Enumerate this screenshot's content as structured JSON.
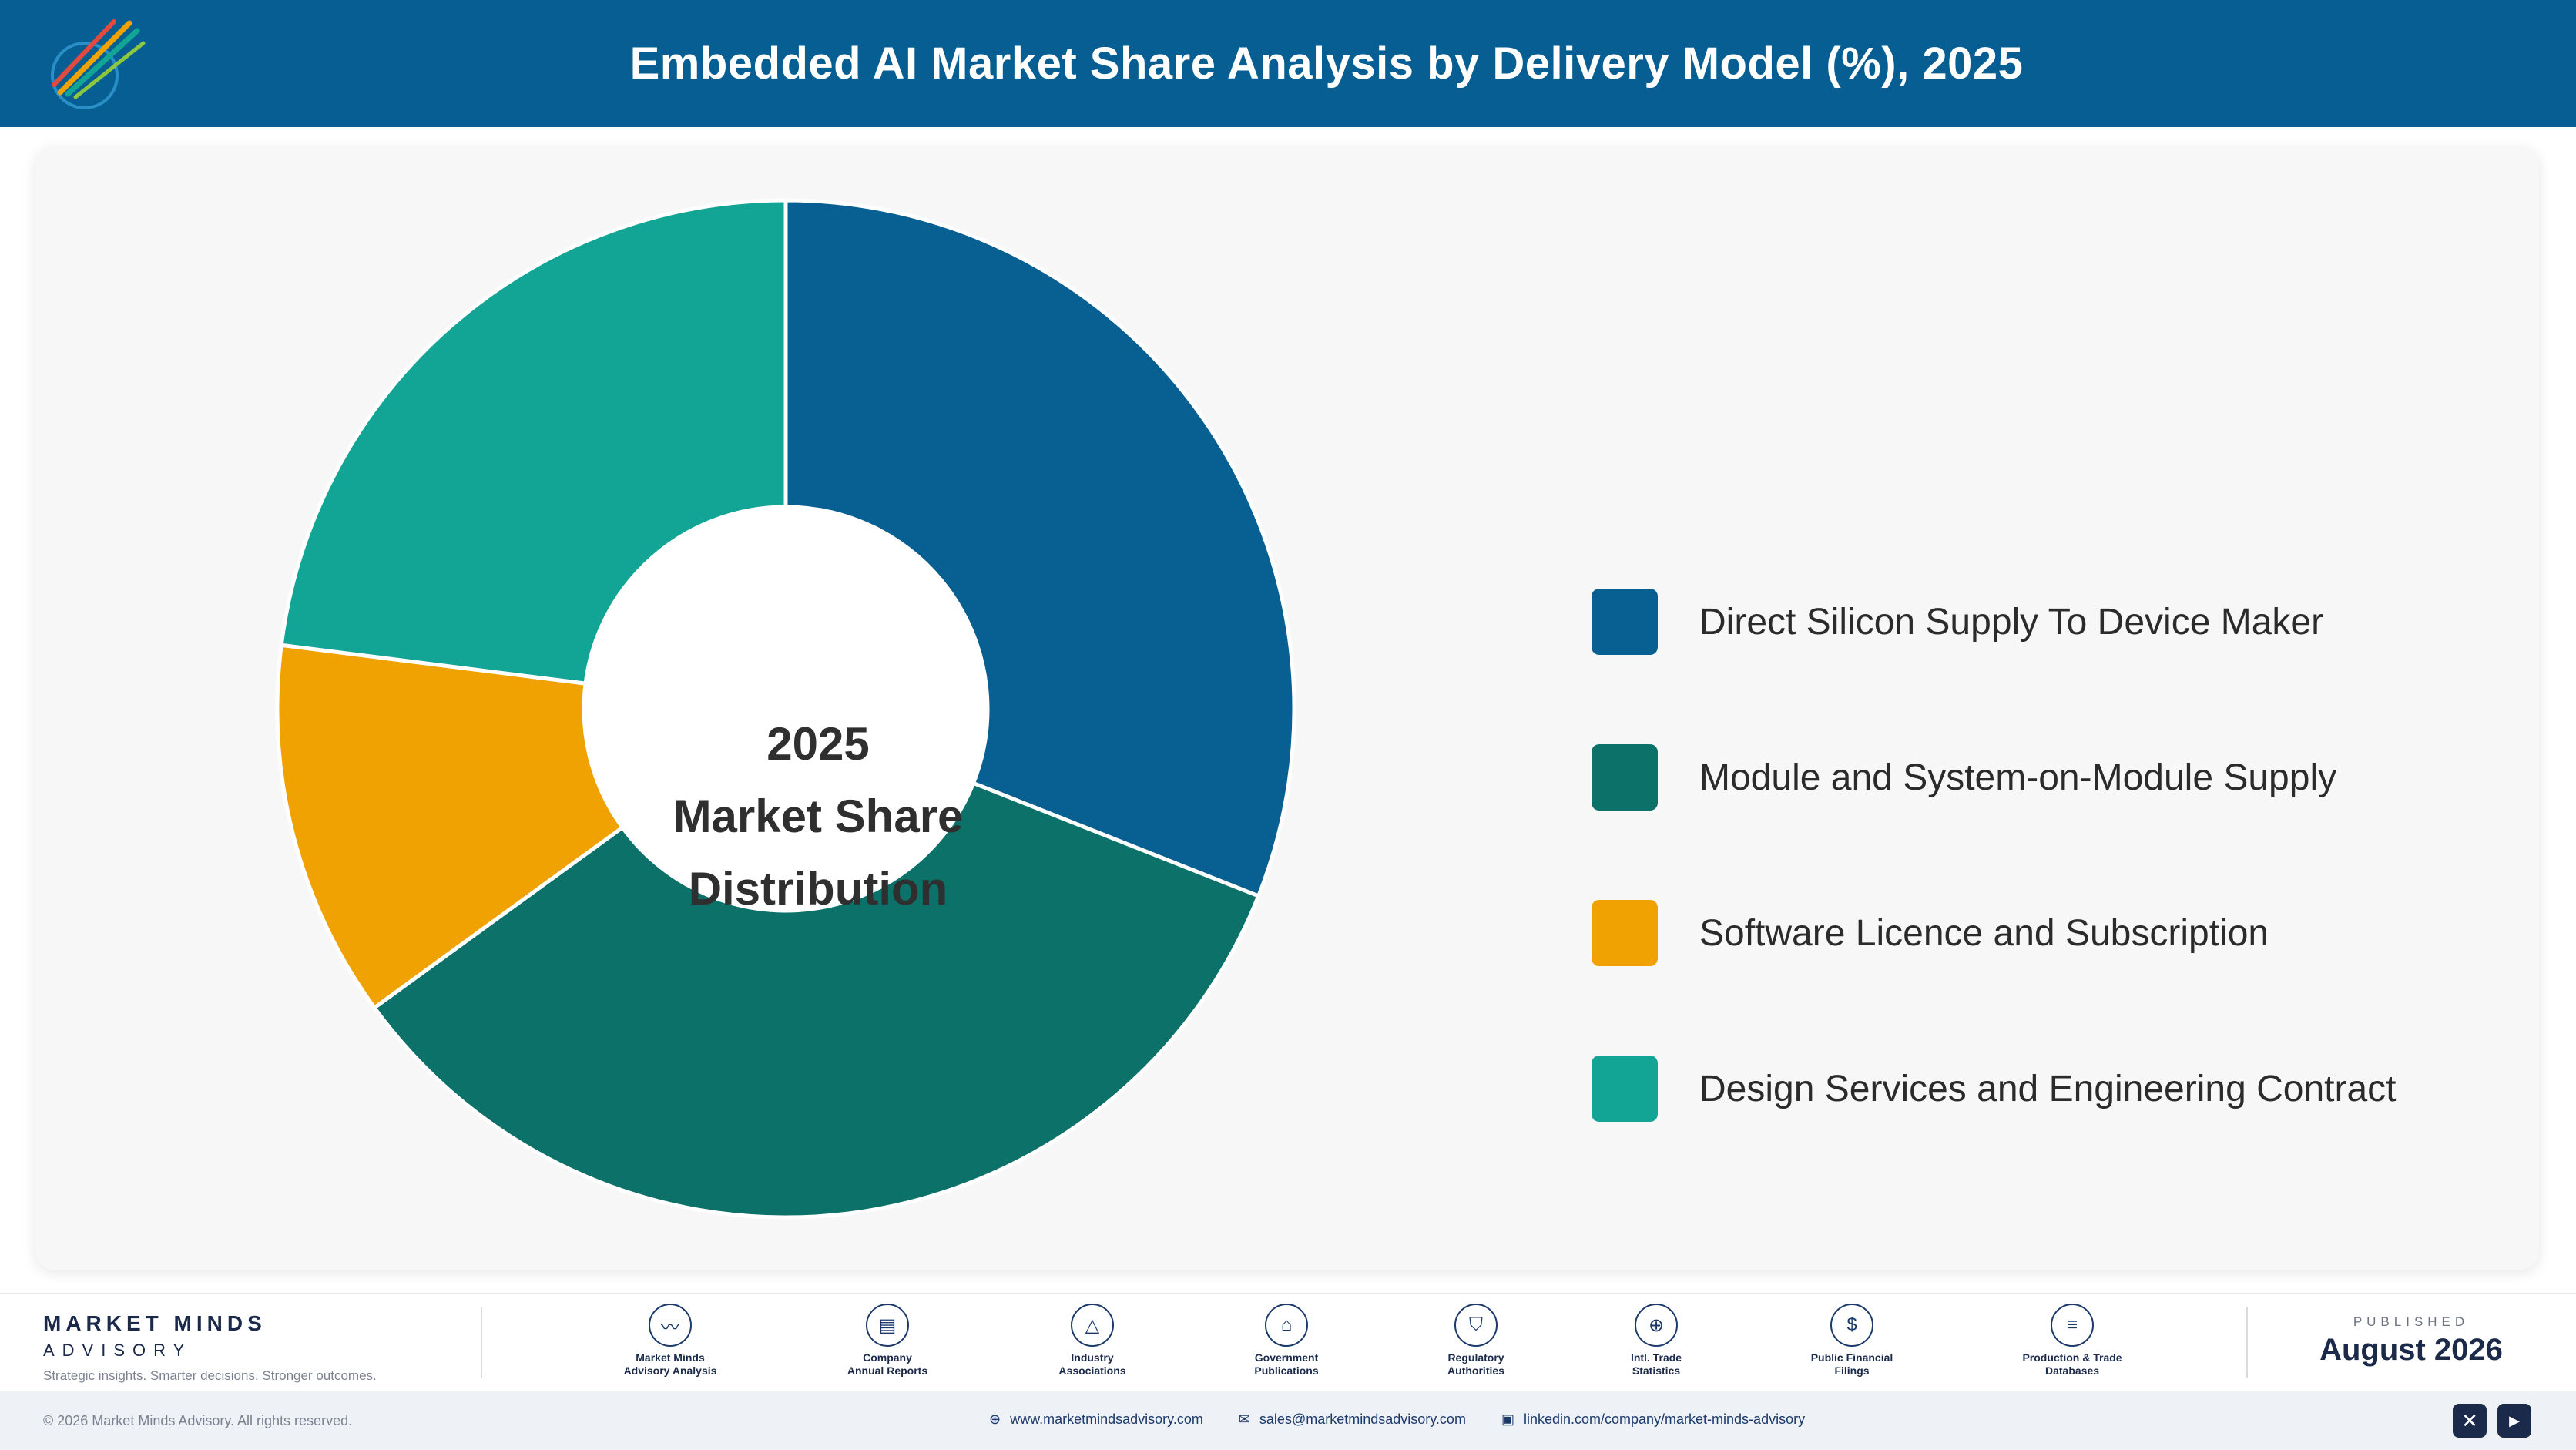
{
  "header": {
    "title": "Embedded AI Market Share Analysis by Delivery Model (%), 2025"
  },
  "chart_data": {
    "type": "pie",
    "donut": true,
    "center_text": [
      "2025",
      "Market Share",
      "Distribution"
    ],
    "categories": [
      "Direct Silicon Supply To Device Maker",
      "Module and System-on-Module Supply",
      "Software Licence and Subscription",
      "Design Services and Engineering Contract"
    ],
    "values": [
      31,
      34,
      12,
      23
    ],
    "colors": [
      "#075f92",
      "#0b7169",
      "#f0a202",
      "#12a494"
    ],
    "legend_position": "right"
  },
  "footer": {
    "brand_name": "MARKET MINDS",
    "brand_sub": "ADVISORY",
    "brand_tagline": "Strategic insights. Smarter decisions. Stronger outcomes.",
    "sources": [
      {
        "label": "Market Minds\nAdvisory Analysis",
        "icon": "chart-line-icon",
        "glyph": "〰"
      },
      {
        "label": "Company\nAnnual Reports",
        "icon": "document-icon",
        "glyph": "▤"
      },
      {
        "label": "Industry\nAssociations",
        "icon": "network-icon",
        "glyph": "△"
      },
      {
        "label": "Government\nPublications",
        "icon": "building-icon",
        "glyph": "⌂"
      },
      {
        "label": "Regulatory\nAuthorities",
        "icon": "shield-icon",
        "glyph": "⛉"
      },
      {
        "label": "Intl. Trade\nStatistics",
        "icon": "globe-icon",
        "glyph": "⊕"
      },
      {
        "label": "Public Financial\nFilings",
        "icon": "coin-icon",
        "glyph": "$"
      },
      {
        "label": "Production & Trade\nDatabases",
        "icon": "database-icon",
        "glyph": "≡"
      }
    ],
    "published_label": "PUBLISHED",
    "published_date": "August 2026",
    "copyright": "© 2026 Market Minds Advisory. All rights reserved.",
    "website": "www.marketmindsadvisory.com",
    "email": "sales@marketmindsadvisory.com",
    "linkedin": "linkedin.com/company/market-minds-advisory"
  }
}
